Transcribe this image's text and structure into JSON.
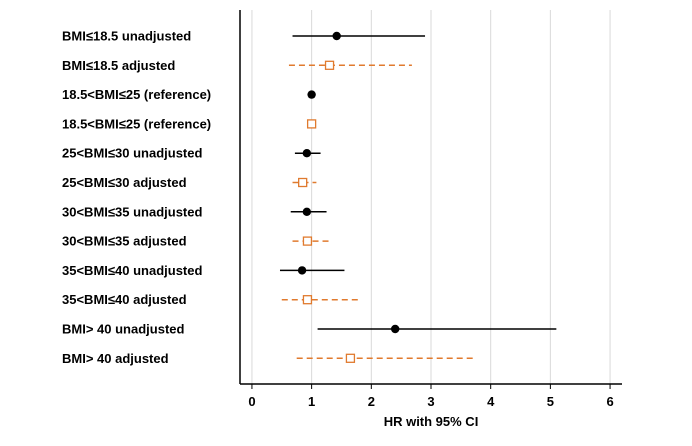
{
  "chart_data": {
    "type": "forest",
    "xlabel": "HR with 95% CI",
    "xlim": [
      -0.2,
      6.2
    ],
    "x_ticks": [
      0,
      1,
      2,
      3,
      4,
      5,
      6
    ],
    "tick_labels": [
      "0",
      "1",
      "2",
      "3",
      "4",
      "5",
      "6"
    ],
    "grid": "vertical",
    "series_styles": {
      "unadjusted": {
        "marker": "filled-circle",
        "color": "#000000",
        "line": "solid"
      },
      "adjusted": {
        "marker": "open-square",
        "color": "#e07a2e",
        "line": "dashed"
      }
    },
    "rows": [
      {
        "label": "BMI≤18.5 unadjusted",
        "kind": "unadjusted",
        "hr": 1.42,
        "ci": [
          0.68,
          2.9
        ]
      },
      {
        "label": "BMI≤18.5 adjusted",
        "kind": "adjusted",
        "hr": 1.3,
        "ci": [
          0.62,
          2.68
        ]
      },
      {
        "label": "18.5<BMI≤25 (reference)",
        "kind": "unadjusted",
        "hr": 1.0,
        "ci": [
          1.0,
          1.0
        ]
      },
      {
        "label": "18.5<BMI≤25 (reference)",
        "kind": "adjusted",
        "hr": 1.0,
        "ci": [
          1.0,
          1.0
        ]
      },
      {
        "label": "25<BMI≤30 unadjusted",
        "kind": "unadjusted",
        "hr": 0.92,
        "ci": [
          0.72,
          1.15
        ]
      },
      {
        "label": "25<BMI≤30 adjusted",
        "kind": "adjusted",
        "hr": 0.85,
        "ci": [
          0.68,
          1.08
        ]
      },
      {
        "label": "30<BMI≤35 unadjusted",
        "kind": "unadjusted",
        "hr": 0.92,
        "ci": [
          0.65,
          1.25
        ]
      },
      {
        "label": "30<BMI≤35 adjusted",
        "kind": "adjusted",
        "hr": 0.93,
        "ci": [
          0.68,
          1.3
        ]
      },
      {
        "label": "35<BMI≤40 unadjusted",
        "kind": "unadjusted",
        "hr": 0.84,
        "ci": [
          0.47,
          1.55
        ]
      },
      {
        "label": "35<BMI≤40 adjusted",
        "kind": "adjusted",
        "hr": 0.93,
        "ci": [
          0.5,
          1.78
        ]
      },
      {
        "label": "BMI> 40 unadjusted",
        "kind": "unadjusted",
        "hr": 2.4,
        "ci": [
          1.1,
          5.1
        ]
      },
      {
        "label": "BMI> 40 adjusted",
        "kind": "adjusted",
        "hr": 1.65,
        "ci": [
          0.75,
          3.7
        ]
      }
    ]
  }
}
